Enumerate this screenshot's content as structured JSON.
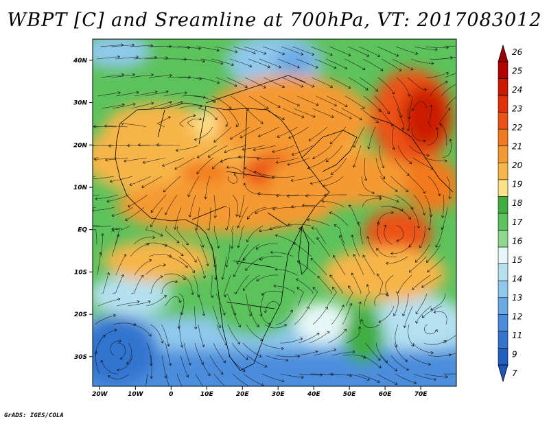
{
  "title": "WBPT [C] and Sreamline at 700hPa, VT: 2017083012",
  "credit": "GrADS: IGES/COLA",
  "map": {
    "lat_labels": [
      "40N",
      "30N",
      "20N",
      "10N",
      "EQ",
      "10S",
      "20S",
      "30S"
    ],
    "lat_values": [
      40,
      30,
      20,
      10,
      0,
      -10,
      -20,
      -30
    ],
    "lon_labels": [
      "20W",
      "10W",
      "0",
      "10E",
      "20E",
      "30E",
      "40E",
      "50E",
      "60E",
      "70E"
    ],
    "lon_values": [
      -20,
      -10,
      0,
      10,
      20,
      30,
      40,
      50,
      60,
      70
    ],
    "lon_range": [
      -22,
      80
    ],
    "lat_range": [
      -37,
      45
    ]
  },
  "colorbar": {
    "labels": [
      "26",
      "25",
      "24",
      "23",
      "22",
      "21",
      "20",
      "19",
      "18",
      "17",
      "16",
      "15",
      "14",
      "13",
      "12",
      "11",
      "9",
      "7"
    ],
    "colors": [
      "#b30000",
      "#cc1a00",
      "#e0310a",
      "#ec5214",
      "#f27a1f",
      "#f59a30",
      "#f7b54a",
      "#fde08a",
      "#3fae3f",
      "#5cc25c",
      "#8dd88d",
      "#e6f7f7",
      "#b4e0f0",
      "#8fc8ec",
      "#6aa9e4",
      "#4b8ddc",
      "#3274d0",
      "#2060c0"
    ],
    "top_arrow_color": "#9e0000",
    "bottom_arrow_color": "#1c56b8"
  }
}
